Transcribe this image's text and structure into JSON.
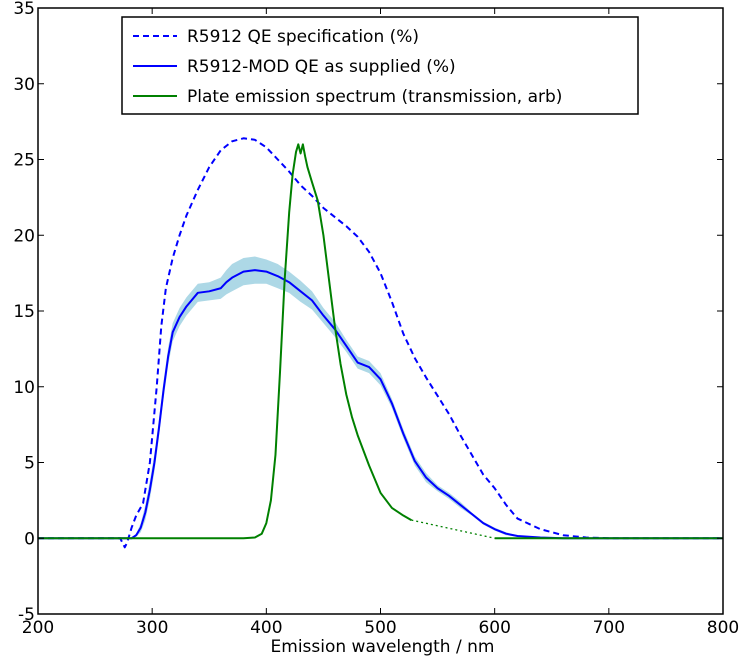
{
  "chart_data": {
    "type": "line",
    "xlabel": "Emission wavelength / nm",
    "ylabel": "",
    "xlim": [
      200,
      800
    ],
    "ylim": [
      -5,
      35
    ],
    "xticks": [
      200,
      300,
      400,
      500,
      600,
      700,
      800
    ],
    "yticks": [
      -5,
      0,
      5,
      10,
      15,
      20,
      25,
      30,
      35
    ],
    "legend_position": "top-center",
    "grid": false,
    "series": [
      {
        "name": "R5912 QE specification (%)",
        "style": "dashed",
        "color": "#0000ff",
        "x": [
          200,
          272,
          276,
          278,
          282,
          286,
          292,
          298,
          304,
          308,
          312,
          318,
          324,
          330,
          340,
          350,
          360,
          370,
          380,
          390,
          400,
          410,
          420,
          430,
          440,
          450,
          460,
          470,
          480,
          490,
          500,
          510,
          520,
          530,
          540,
          550,
          560,
          570,
          580,
          590,
          600,
          610,
          620,
          640,
          660,
          680,
          700,
          800
        ],
        "y": [
          0,
          0,
          -0.6,
          -0.3,
          0.7,
          1.5,
          2.3,
          5,
          10,
          14,
          16.5,
          18.5,
          20,
          21.3,
          23,
          24.5,
          25.6,
          26.2,
          26.4,
          26.3,
          25.8,
          25,
          24.2,
          23.3,
          22.6,
          21.8,
          21.2,
          20.6,
          19.9,
          18.9,
          17.5,
          15.6,
          13.5,
          11.9,
          10.6,
          9.4,
          8.2,
          6.8,
          5.5,
          4.2,
          3.3,
          2.2,
          1.3,
          0.6,
          0.2,
          0.05,
          0,
          0
        ]
      },
      {
        "name": "R5912-MOD QE as supplied (%)",
        "style": "solid",
        "color": "#0000ff",
        "band_color": "#add8e6",
        "x": [
          200,
          282,
          286,
          290,
          294,
          298,
          302,
          306,
          310,
          314,
          318,
          324,
          330,
          340,
          350,
          360,
          365,
          370,
          380,
          390,
          400,
          410,
          420,
          430,
          440,
          450,
          460,
          470,
          480,
          490,
          500,
          510,
          520,
          530,
          540,
          550,
          560,
          570,
          580,
          590,
          600,
          610,
          620,
          640,
          660,
          680,
          700,
          800
        ],
        "y": [
          0,
          0,
          0.2,
          0.7,
          1.7,
          3.2,
          5,
          7.3,
          9.8,
          12,
          13.6,
          14.6,
          15.3,
          16.2,
          16.3,
          16.5,
          16.9,
          17.2,
          17.6,
          17.7,
          17.6,
          17.3,
          16.9,
          16.3,
          15.7,
          14.7,
          13.8,
          12.7,
          11.6,
          11.3,
          10.5,
          8.9,
          6.9,
          5.1,
          4.0,
          3.3,
          2.8,
          2.2,
          1.6,
          1.0,
          0.6,
          0.3,
          0.15,
          0.05,
          0,
          0,
          0,
          0
        ],
        "band_halfwidth": [
          0,
          0,
          0.1,
          0.3,
          0.5,
          0.6,
          0.6,
          0.6,
          0.6,
          0.6,
          0.6,
          0.6,
          0.6,
          0.6,
          0.6,
          0.7,
          0.8,
          0.9,
          0.9,
          0.9,
          0.8,
          0.8,
          0.7,
          0.7,
          0.6,
          0.5,
          0.5,
          0.4,
          0.4,
          0.4,
          0.4,
          0.3,
          0.3,
          0.3,
          0.3,
          0.2,
          0.2,
          0.2,
          0.1,
          0.1,
          0.1,
          0.1,
          0.05,
          0,
          0,
          0,
          0,
          0
        ]
      },
      {
        "name": "Plate emission spectrum (transmission, arb)",
        "style": "solid",
        "color": "#008000",
        "x": [
          200,
          330,
          380,
          390,
          396,
          400,
          404,
          408,
          412,
          416,
          420,
          423,
          426,
          428,
          430,
          432,
          434,
          436,
          440,
          445,
          450,
          455,
          460,
          465,
          470,
          475,
          480,
          490,
          500,
          510,
          520,
          527
        ],
        "y": [
          0,
          0,
          0,
          0.05,
          0.3,
          1,
          2.5,
          5.5,
          11,
          17,
          21.5,
          24,
          25.5,
          26,
          25.4,
          26,
          25.2,
          24.5,
          23.5,
          22.3,
          20,
          17,
          14,
          11.5,
          9.5,
          8,
          6.8,
          4.8,
          3,
          2.0,
          1.5,
          1.2
        ]
      },
      {
        "name": "",
        "style": "dotted",
        "color": "#008000",
        "x": [
          527,
          600
        ],
        "y": [
          1.2,
          0
        ]
      },
      {
        "name": "",
        "style": "solid",
        "color": "#008000",
        "x": [
          600,
          800
        ],
        "y": [
          0,
          0
        ]
      }
    ]
  }
}
